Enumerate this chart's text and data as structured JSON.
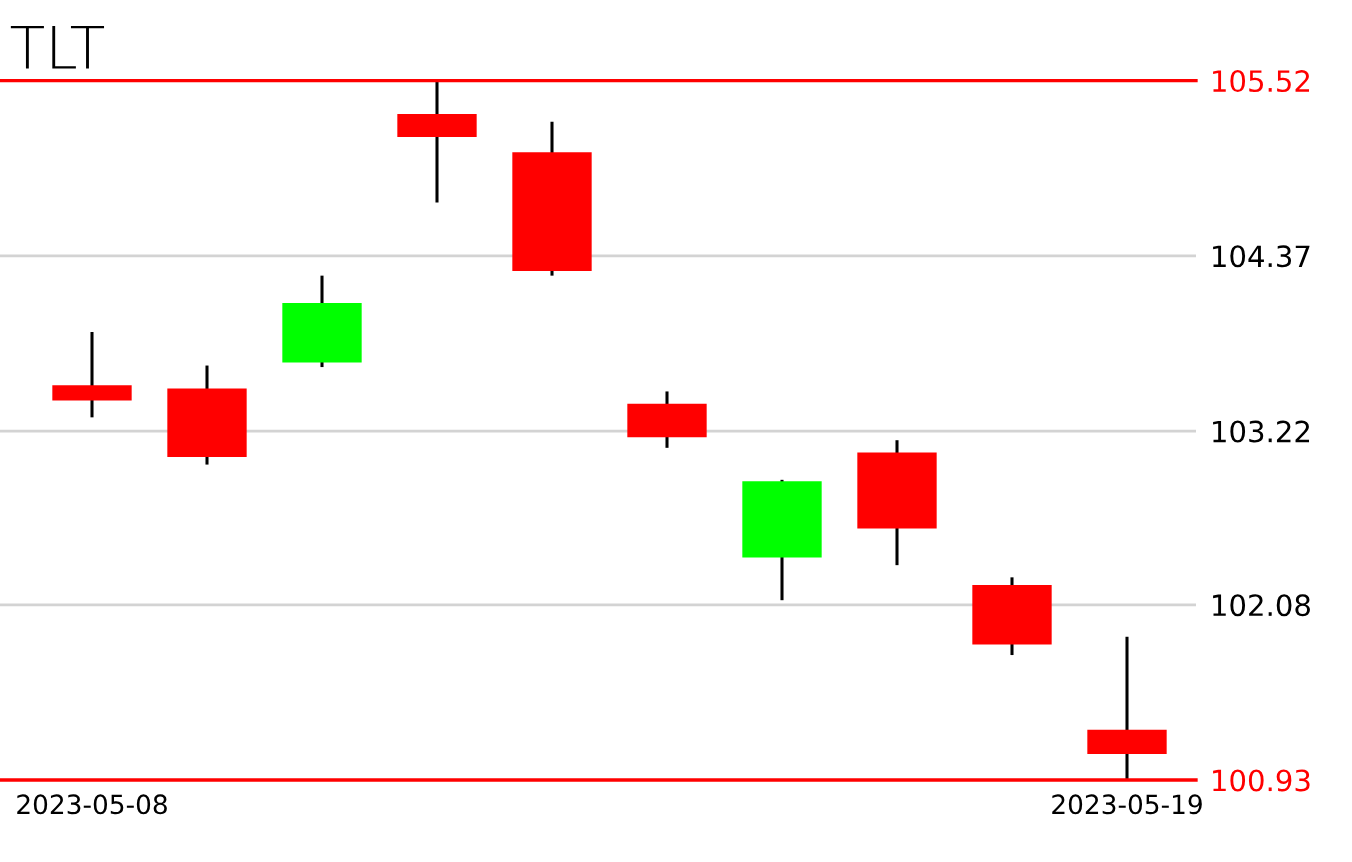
{
  "chart_data": {
    "type": "candlestick",
    "title": "TLT",
    "categories": [
      "2023-05-08",
      null,
      null,
      null,
      null,
      null,
      null,
      null,
      null,
      "2023-05-19"
    ],
    "ohlc": [
      [
        103.52,
        103.87,
        103.31,
        103.42
      ],
      [
        103.5,
        103.65,
        103.0,
        103.05
      ],
      [
        103.67,
        104.24,
        103.64,
        104.06
      ],
      [
        105.3,
        105.52,
        104.72,
        105.15
      ],
      [
        105.05,
        105.25,
        104.24,
        104.27
      ],
      [
        103.4,
        103.48,
        103.11,
        103.18
      ],
      [
        102.39,
        102.9,
        102.11,
        102.89
      ],
      [
        103.08,
        103.16,
        102.34,
        102.58
      ],
      [
        102.21,
        102.26,
        101.75,
        101.82
      ],
      [
        101.26,
        101.87,
        100.93,
        101.1
      ]
    ],
    "colors": [
      "#ff0000",
      "#ff0000",
      "#00ff00",
      "#ff0000",
      "#ff0000",
      "#ff0000",
      "#00ff00",
      "#ff0000",
      "#ff0000",
      "#ff0000"
    ],
    "ylim": [
      100.93,
      105.52
    ],
    "yticks": [
      105.52,
      104.37,
      103.22,
      102.08,
      100.93
    ],
    "grid": "y",
    "ref_lines": [
      {
        "axis": "y",
        "value": 105.52,
        "color": "#ff0000"
      }
    ]
  }
}
